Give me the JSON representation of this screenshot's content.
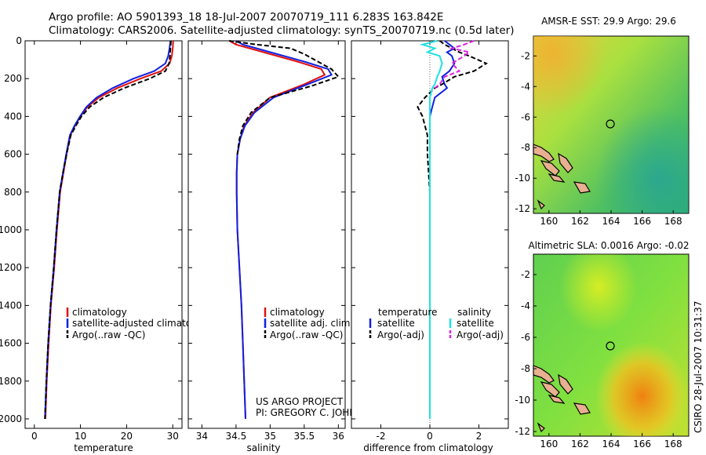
{
  "header": {
    "line1": "Argo profile: AO 5901393_18 18-Jul-2007 20070719_111 6.283S 163.842E",
    "line2": "Climatology: CARS2006. Satellite-adjusted climatology: synTS_20070719.nc (0.5d later)"
  },
  "footer": {
    "project": "US ARGO PROJECT",
    "pi": "PI: GREGORY C. JOHNSON",
    "stamp": "CSIRO 28-Jul-2007 10:31:37"
  },
  "colors": {
    "climatology": "#e01010",
    "satellite": "#1020e0",
    "argo": "#000000",
    "sal_satellite": "#20e0e0",
    "sal_argo": "#e020e0"
  },
  "chart_data": [
    {
      "type": "line",
      "xlabel": "temperature",
      "ylabel": "",
      "xlim": [
        -2,
        32
      ],
      "ylim": [
        2050,
        0
      ],
      "xticks": [
        0,
        10,
        20,
        30
      ],
      "yticks": [
        0,
        200,
        400,
        600,
        800,
        1000,
        1200,
        1400,
        1600,
        1800,
        2000
      ],
      "legend": [
        "climatology",
        "satellite-adjusted climatology",
        "Argo(..raw -QC)"
      ],
      "series": [
        {
          "name": "climatology",
          "style": "solid",
          "color": "#e01010",
          "x": [
            30.1,
            30.0,
            29.8,
            29.3,
            27.5,
            23.0,
            18.0,
            14.0,
            11.5,
            10.0,
            8.8,
            7.8,
            7.0,
            6.3,
            5.6,
            4.9,
            4.3,
            3.6,
            3.1,
            2.7,
            2.4
          ],
          "y": [
            0,
            40,
            80,
            120,
            160,
            200,
            250,
            300,
            350,
            400,
            450,
            500,
            600,
            700,
            800,
            1000,
            1200,
            1400,
            1600,
            1800,
            2000
          ]
        },
        {
          "name": "satellite",
          "style": "solid",
          "color": "#1020e0",
          "x": [
            29.5,
            29.3,
            29.0,
            28.4,
            26.0,
            21.5,
            17.0,
            13.5,
            11.3,
            9.9,
            8.7,
            7.7,
            6.9,
            6.2,
            5.5,
            4.8,
            4.2,
            3.5,
            3.0,
            2.6,
            2.3
          ],
          "y": [
            0,
            40,
            80,
            120,
            160,
            200,
            250,
            300,
            350,
            400,
            450,
            500,
            600,
            700,
            800,
            1000,
            1200,
            1400,
            1600,
            1800,
            2000
          ]
        },
        {
          "name": "Argo",
          "style": "dashed",
          "color": "#000000",
          "x": [
            29.6,
            29.5,
            29.4,
            29.2,
            28.4,
            25.0,
            19.5,
            15.0,
            12.0,
            10.2,
            9.0,
            7.9,
            7.0,
            6.2,
            5.5,
            4.8,
            4.2,
            3.5,
            3.0,
            2.6,
            2.3
          ],
          "y": [
            0,
            40,
            80,
            120,
            160,
            200,
            250,
            300,
            350,
            400,
            450,
            500,
            600,
            700,
            800,
            1000,
            1200,
            1400,
            1600,
            1800,
            2000
          ]
        }
      ]
    },
    {
      "type": "line",
      "xlabel": "salinity",
      "xlim": [
        33.8,
        36.1
      ],
      "ylim": [
        2050,
        0
      ],
      "xticks": [
        34,
        34.5,
        35,
        35.5,
        36
      ],
      "legend": [
        "climatology",
        "satellite adj. clim.",
        "Argo(..raw -QC)"
      ],
      "series": [
        {
          "name": "climatology",
          "style": "solid",
          "color": "#e01010",
          "x": [
            34.4,
            34.5,
            34.7,
            35.0,
            35.4,
            35.75,
            35.8,
            35.5,
            35.0,
            34.75,
            34.62,
            34.56,
            34.52,
            34.51,
            34.51,
            34.52,
            34.55,
            34.58,
            34.6,
            34.62,
            34.64
          ],
          "y": [
            0,
            20,
            40,
            70,
            110,
            150,
            180,
            230,
            300,
            380,
            450,
            520,
            600,
            700,
            800,
            1000,
            1200,
            1400,
            1600,
            1800,
            2000
          ]
        },
        {
          "name": "satellite",
          "style": "solid",
          "color": "#1020e0",
          "x": [
            34.5,
            34.6,
            34.8,
            35.1,
            35.5,
            35.85,
            35.9,
            35.55,
            35.05,
            34.77,
            34.63,
            34.56,
            34.52,
            34.51,
            34.51,
            34.52,
            34.55,
            34.58,
            34.6,
            34.62,
            34.64
          ],
          "y": [
            0,
            20,
            40,
            70,
            110,
            150,
            180,
            230,
            300,
            380,
            450,
            520,
            600,
            700,
            800,
            1000,
            1200,
            1400,
            1600,
            1800,
            2000
          ]
        },
        {
          "name": "Argo",
          "style": "dashed",
          "color": "#000000",
          "x": [
            34.4,
            34.8,
            35.3,
            35.5,
            35.7,
            35.9,
            36.0,
            35.6,
            35.0,
            34.72,
            34.6,
            34.55,
            34.52
          ],
          "y": [
            0,
            20,
            40,
            70,
            110,
            150,
            190,
            240,
            300,
            380,
            450,
            520,
            600
          ]
        }
      ]
    },
    {
      "type": "line",
      "xlabel": "difference from climatology",
      "xlim": [
        -3.2,
        3.2
      ],
      "ylim": [
        2050,
        0
      ],
      "xticks": [
        -2,
        0,
        2
      ],
      "legend": [
        "temperature",
        "satellite",
        "Argo(-adj)",
        "salinity",
        "satellite",
        "Argo(-adj)"
      ],
      "series": [
        {
          "name": "temp satellite",
          "style": "solid",
          "color": "#1020e0",
          "x": [
            0.6,
            0.8,
            1.0,
            0.7,
            0.9,
            1.0,
            0.8,
            0.5,
            0.6,
            0.7,
            0.2,
            0.1,
            0.0,
            0.0,
            0.0,
            0.0,
            0.0,
            0.0,
            0.0,
            0.0
          ],
          "y": [
            0,
            20,
            40,
            60,
            80,
            120,
            160,
            190,
            230,
            250,
            300,
            350,
            400,
            500,
            600,
            800,
            1000,
            1400,
            1800,
            2000
          ]
        },
        {
          "name": "temp Argo",
          "style": "dashed",
          "color": "#000000",
          "x": [
            0.4,
            0.6,
            0.9,
            1.2,
            1.6,
            2.3,
            1.8,
            1.0,
            0.5,
            0.2,
            -0.2,
            -0.5,
            -0.3,
            -0.1,
            -0.1,
            0.0,
            0.0,
            0.0,
            0.0,
            0.0
          ],
          "y": [
            0,
            20,
            40,
            60,
            80,
            120,
            160,
            190,
            230,
            250,
            300,
            350,
            400,
            500,
            600,
            800,
            1000,
            1400,
            1800,
            2000
          ]
        },
        {
          "name": "sal satellite",
          "style": "solid",
          "color": "#20e0e0",
          "x": [
            0.3,
            -0.3,
            0.2,
            -0.1,
            0.4,
            0.5,
            0.4,
            0.3,
            0.2,
            0.1,
            0.0,
            0.0,
            0.0,
            0.0,
            0.0,
            0.0,
            0.0,
            0.0,
            0.0,
            0.0
          ],
          "y": [
            0,
            20,
            40,
            60,
            80,
            120,
            160,
            190,
            230,
            250,
            300,
            350,
            400,
            500,
            600,
            800,
            1000,
            1400,
            1800,
            2000
          ]
        },
        {
          "name": "sal Argo",
          "style": "dashed",
          "color": "#e020e0",
          "x": [
            1.8,
            1.4,
            0.9,
            1.6,
            1.4,
            0.9,
            1.2,
            0.6,
            0.4,
            0.2
          ],
          "y": [
            0,
            20,
            40,
            60,
            80,
            120,
            160,
            190,
            230,
            250
          ]
        }
      ]
    },
    {
      "type": "heatmap",
      "title": "AMSR-E SST: 29.9  Argo: 29.6",
      "xlim": [
        159,
        169
      ],
      "ylim": [
        -12.3,
        -0.7
      ],
      "xticks": [
        160,
        162,
        164,
        166,
        168
      ],
      "yticks": [
        -2,
        -4,
        -6,
        -8,
        -10,
        -12
      ],
      "marker": {
        "lon": 163.84,
        "lat": -6.28
      }
    },
    {
      "type": "heatmap",
      "title": "Altimetric SLA: 0.0016  Argo: -0.02",
      "xlim": [
        159,
        169
      ],
      "ylim": [
        -12.3,
        -0.7
      ],
      "xticks": [
        160,
        162,
        164,
        166,
        168
      ],
      "yticks": [
        -2,
        -4,
        -6,
        -8,
        -10,
        -12
      ],
      "marker": {
        "lon": 163.84,
        "lat": -6.28
      }
    }
  ]
}
